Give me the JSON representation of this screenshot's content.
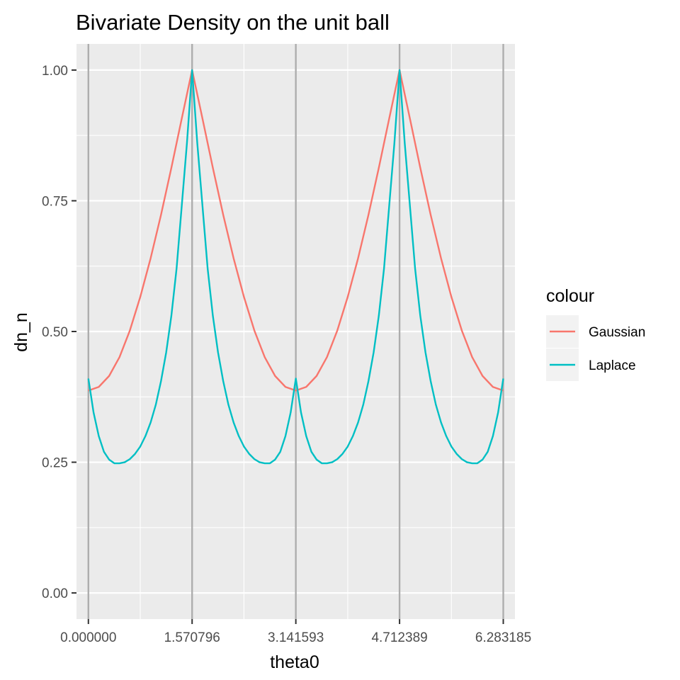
{
  "chart_data": {
    "type": "line",
    "title": "Bivariate Density on the unit ball",
    "xlabel": "theta0",
    "ylabel": "dn_n",
    "xlim": [
      -0.18,
      6.46
    ],
    "ylim": [
      -0.05,
      1.05
    ],
    "x_ticks": [
      0,
      1.570796,
      3.141593,
      4.712389,
      6.283185
    ],
    "x_tick_labels": [
      "0.000000",
      "1.570796",
      "3.141593",
      "4.712389",
      "6.283185"
    ],
    "y_ticks": [
      0,
      0.25,
      0.5,
      0.75,
      1
    ],
    "y_tick_labels": [
      "0.00",
      "0.25",
      "0.50",
      "0.75",
      "1.00"
    ],
    "vertical_reference_lines": [
      0,
      1.570796,
      3.141593,
      4.712389,
      6.283185
    ],
    "grid": true,
    "legend": {
      "title": "colour",
      "position": "right"
    },
    "series": [
      {
        "name": "Gaussian",
        "color": "#F8766D",
        "x": [
          0,
          0.1571,
          0.3142,
          0.4712,
          0.6283,
          0.7854,
          0.9425,
          1.0996,
          1.2566,
          1.4137,
          1.5708,
          1.7279,
          1.885,
          2.042,
          2.1991,
          2.3562,
          2.5133,
          2.6704,
          2.8274,
          2.9845,
          3.1416,
          3.2987,
          3.4558,
          3.6128,
          3.7699,
          3.927,
          4.0841,
          4.2412,
          4.3982,
          4.5553,
          4.7124,
          4.8695,
          5.0265,
          5.1836,
          5.3407,
          5.4978,
          5.6549,
          5.8119,
          5.969,
          6.1261,
          6.2832
        ],
        "y": [
          0.387,
          0.394,
          0.415,
          0.451,
          0.502,
          0.566,
          0.64,
          0.723,
          0.813,
          0.907,
          1.0,
          0.907,
          0.813,
          0.723,
          0.64,
          0.566,
          0.502,
          0.451,
          0.415,
          0.394,
          0.387,
          0.394,
          0.415,
          0.451,
          0.502,
          0.566,
          0.64,
          0.723,
          0.813,
          0.907,
          1.0,
          0.907,
          0.813,
          0.723,
          0.64,
          0.566,
          0.502,
          0.451,
          0.415,
          0.394,
          0.387
        ]
      },
      {
        "name": "Laplace",
        "color": "#00BFC4",
        "x": [
          0,
          0.0785,
          0.1571,
          0.2356,
          0.3142,
          0.3927,
          0.4712,
          0.5498,
          0.6283,
          0.7069,
          0.7854,
          0.8639,
          0.9425,
          1.021,
          1.0996,
          1.1781,
          1.2566,
          1.3352,
          1.4137,
          1.4923,
          1.5708,
          1.6493,
          1.7279,
          1.8064,
          1.885,
          1.9635,
          2.042,
          2.1206,
          2.1991,
          2.2777,
          2.3562,
          2.4347,
          2.5133,
          2.5918,
          2.6704,
          2.7489,
          2.8274,
          2.906,
          2.9845,
          3.0631,
          3.1416,
          3.2201,
          3.2987,
          3.3772,
          3.4558,
          3.5343,
          3.6128,
          3.6914,
          3.7699,
          3.8485,
          3.927,
          4.0055,
          4.0841,
          4.1626,
          4.2412,
          4.3197,
          4.3982,
          4.4768,
          4.5553,
          4.6339,
          4.7124,
          4.7909,
          4.8695,
          4.948,
          5.0265,
          5.1051,
          5.1836,
          5.2622,
          5.3407,
          5.4193,
          5.4978,
          5.5763,
          5.6549,
          5.7334,
          5.812,
          5.8905,
          5.969,
          6.0476,
          6.1261,
          6.2047,
          6.2832
        ],
        "y": [
          0.41,
          0.345,
          0.3,
          0.27,
          0.255,
          0.248,
          0.248,
          0.25,
          0.256,
          0.266,
          0.28,
          0.3,
          0.326,
          0.36,
          0.405,
          0.46,
          0.53,
          0.62,
          0.74,
          0.86,
          1.0,
          0.86,
          0.74,
          0.62,
          0.53,
          0.46,
          0.405,
          0.36,
          0.326,
          0.3,
          0.28,
          0.266,
          0.256,
          0.25,
          0.248,
          0.248,
          0.255,
          0.27,
          0.3,
          0.345,
          0.41,
          0.345,
          0.3,
          0.27,
          0.255,
          0.248,
          0.248,
          0.25,
          0.256,
          0.266,
          0.28,
          0.3,
          0.326,
          0.36,
          0.405,
          0.46,
          0.53,
          0.62,
          0.74,
          0.86,
          1.0,
          0.86,
          0.74,
          0.62,
          0.53,
          0.46,
          0.405,
          0.36,
          0.326,
          0.3,
          0.28,
          0.266,
          0.256,
          0.25,
          0.248,
          0.248,
          0.255,
          0.27,
          0.3,
          0.345,
          0.41
        ]
      }
    ]
  }
}
